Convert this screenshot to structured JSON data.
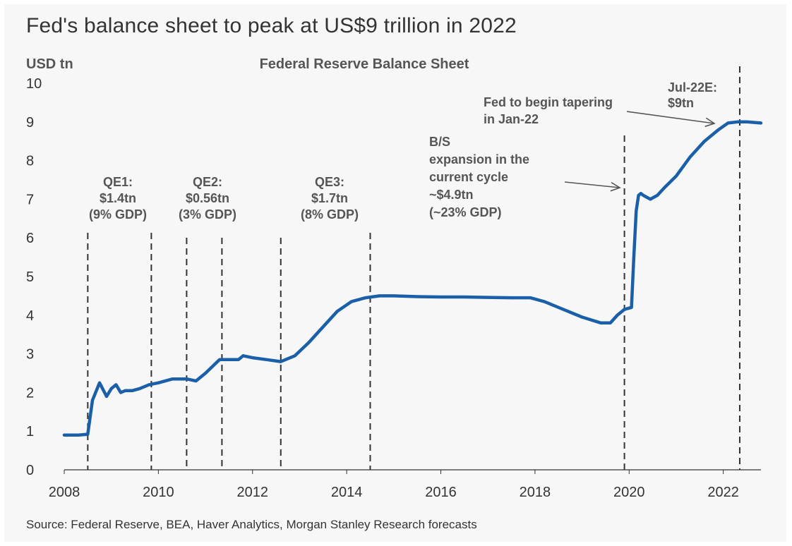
{
  "headline": "Fed's balance sheet to peak at US$9 trillion in 2022",
  "source": "Source: Federal Reserve, BEA, Haver Analytics, Morgan Stanley Research forecasts",
  "colors": {
    "line": "#1a5fa8",
    "text": "#333333",
    "annotation": "#555555",
    "background": "#f7f7f7"
  },
  "chart_data": {
    "type": "line",
    "title": "Federal Reserve Balance Sheet",
    "ylabel": "USD tn",
    "xlabel": "",
    "xlim": [
      2008,
      2022.8
    ],
    "ylim": [
      0,
      10
    ],
    "x_ticks": [
      "2008",
      "2010",
      "2012",
      "2014",
      "2016",
      "2018",
      "2020",
      "2022"
    ],
    "y_ticks": [
      "0",
      "1",
      "2",
      "3",
      "4",
      "5",
      "6",
      "7",
      "8",
      "9",
      "10"
    ],
    "grid": false,
    "legend": "none",
    "series": [
      {
        "x": [
          2008.0,
          2008.3,
          2008.5,
          2008.6,
          2008.75,
          2008.9,
          2009.0,
          2009.1,
          2009.2,
          2009.3,
          2009.45,
          2009.6,
          2009.8,
          2010.0,
          2010.3,
          2010.6,
          2010.8,
          2011.0,
          2011.3,
          2011.5,
          2011.7,
          2011.8,
          2012.0,
          2012.3,
          2012.6,
          2012.9,
          2013.2,
          2013.5,
          2013.8,
          2014.1,
          2014.4,
          2014.7,
          2015.0,
          2015.5,
          2016.0,
          2016.5,
          2017.0,
          2017.5,
          2017.9,
          2018.2,
          2018.6,
          2019.0,
          2019.4,
          2019.6,
          2019.75,
          2019.9,
          2020.05,
          2020.1,
          2020.15,
          2020.2,
          2020.25,
          2020.3,
          2020.45,
          2020.6,
          2020.75,
          2021.0,
          2021.3,
          2021.6,
          2021.9,
          2022.1,
          2022.3,
          2022.5,
          2022.8
        ],
        "y": [
          0.9,
          0.9,
          0.92,
          1.8,
          2.25,
          1.9,
          2.1,
          2.2,
          2.0,
          2.05,
          2.05,
          2.1,
          2.2,
          2.25,
          2.35,
          2.35,
          2.3,
          2.5,
          2.85,
          2.85,
          2.85,
          2.95,
          2.9,
          2.85,
          2.8,
          2.95,
          3.3,
          3.7,
          4.1,
          4.35,
          4.45,
          4.5,
          4.5,
          4.48,
          4.47,
          4.47,
          4.46,
          4.45,
          4.45,
          4.35,
          4.15,
          3.95,
          3.8,
          3.8,
          4.0,
          4.15,
          4.2,
          5.5,
          6.7,
          7.1,
          7.15,
          7.1,
          7.0,
          7.1,
          7.3,
          7.6,
          8.1,
          8.5,
          8.8,
          8.97,
          9.0,
          9.0,
          8.97
        ]
      }
    ],
    "period_lines": [
      2008.5,
      2009.85,
      2010.6,
      2011.35,
      2012.6,
      2014.5,
      2019.9,
      2022.35
    ],
    "annotations": [
      {
        "lines": [
          "QE1:",
          "$1.4tn",
          "(9% GDP)"
        ]
      },
      {
        "lines": [
          "QE2:",
          "$0.56tn",
          "(3% GDP)"
        ]
      },
      {
        "lines": [
          "QE3:",
          "$1.7tn",
          "(8% GDP)"
        ]
      },
      {
        "lines": [
          "B/S",
          "expansion in the",
          "current cycle",
          "~$4.9tn",
          "(~23% GDP)"
        ]
      },
      {
        "lines": [
          "Fed to begin tapering",
          "in Jan-22"
        ]
      },
      {
        "lines": [
          "Jul-22E:",
          "$9tn"
        ]
      }
    ]
  }
}
